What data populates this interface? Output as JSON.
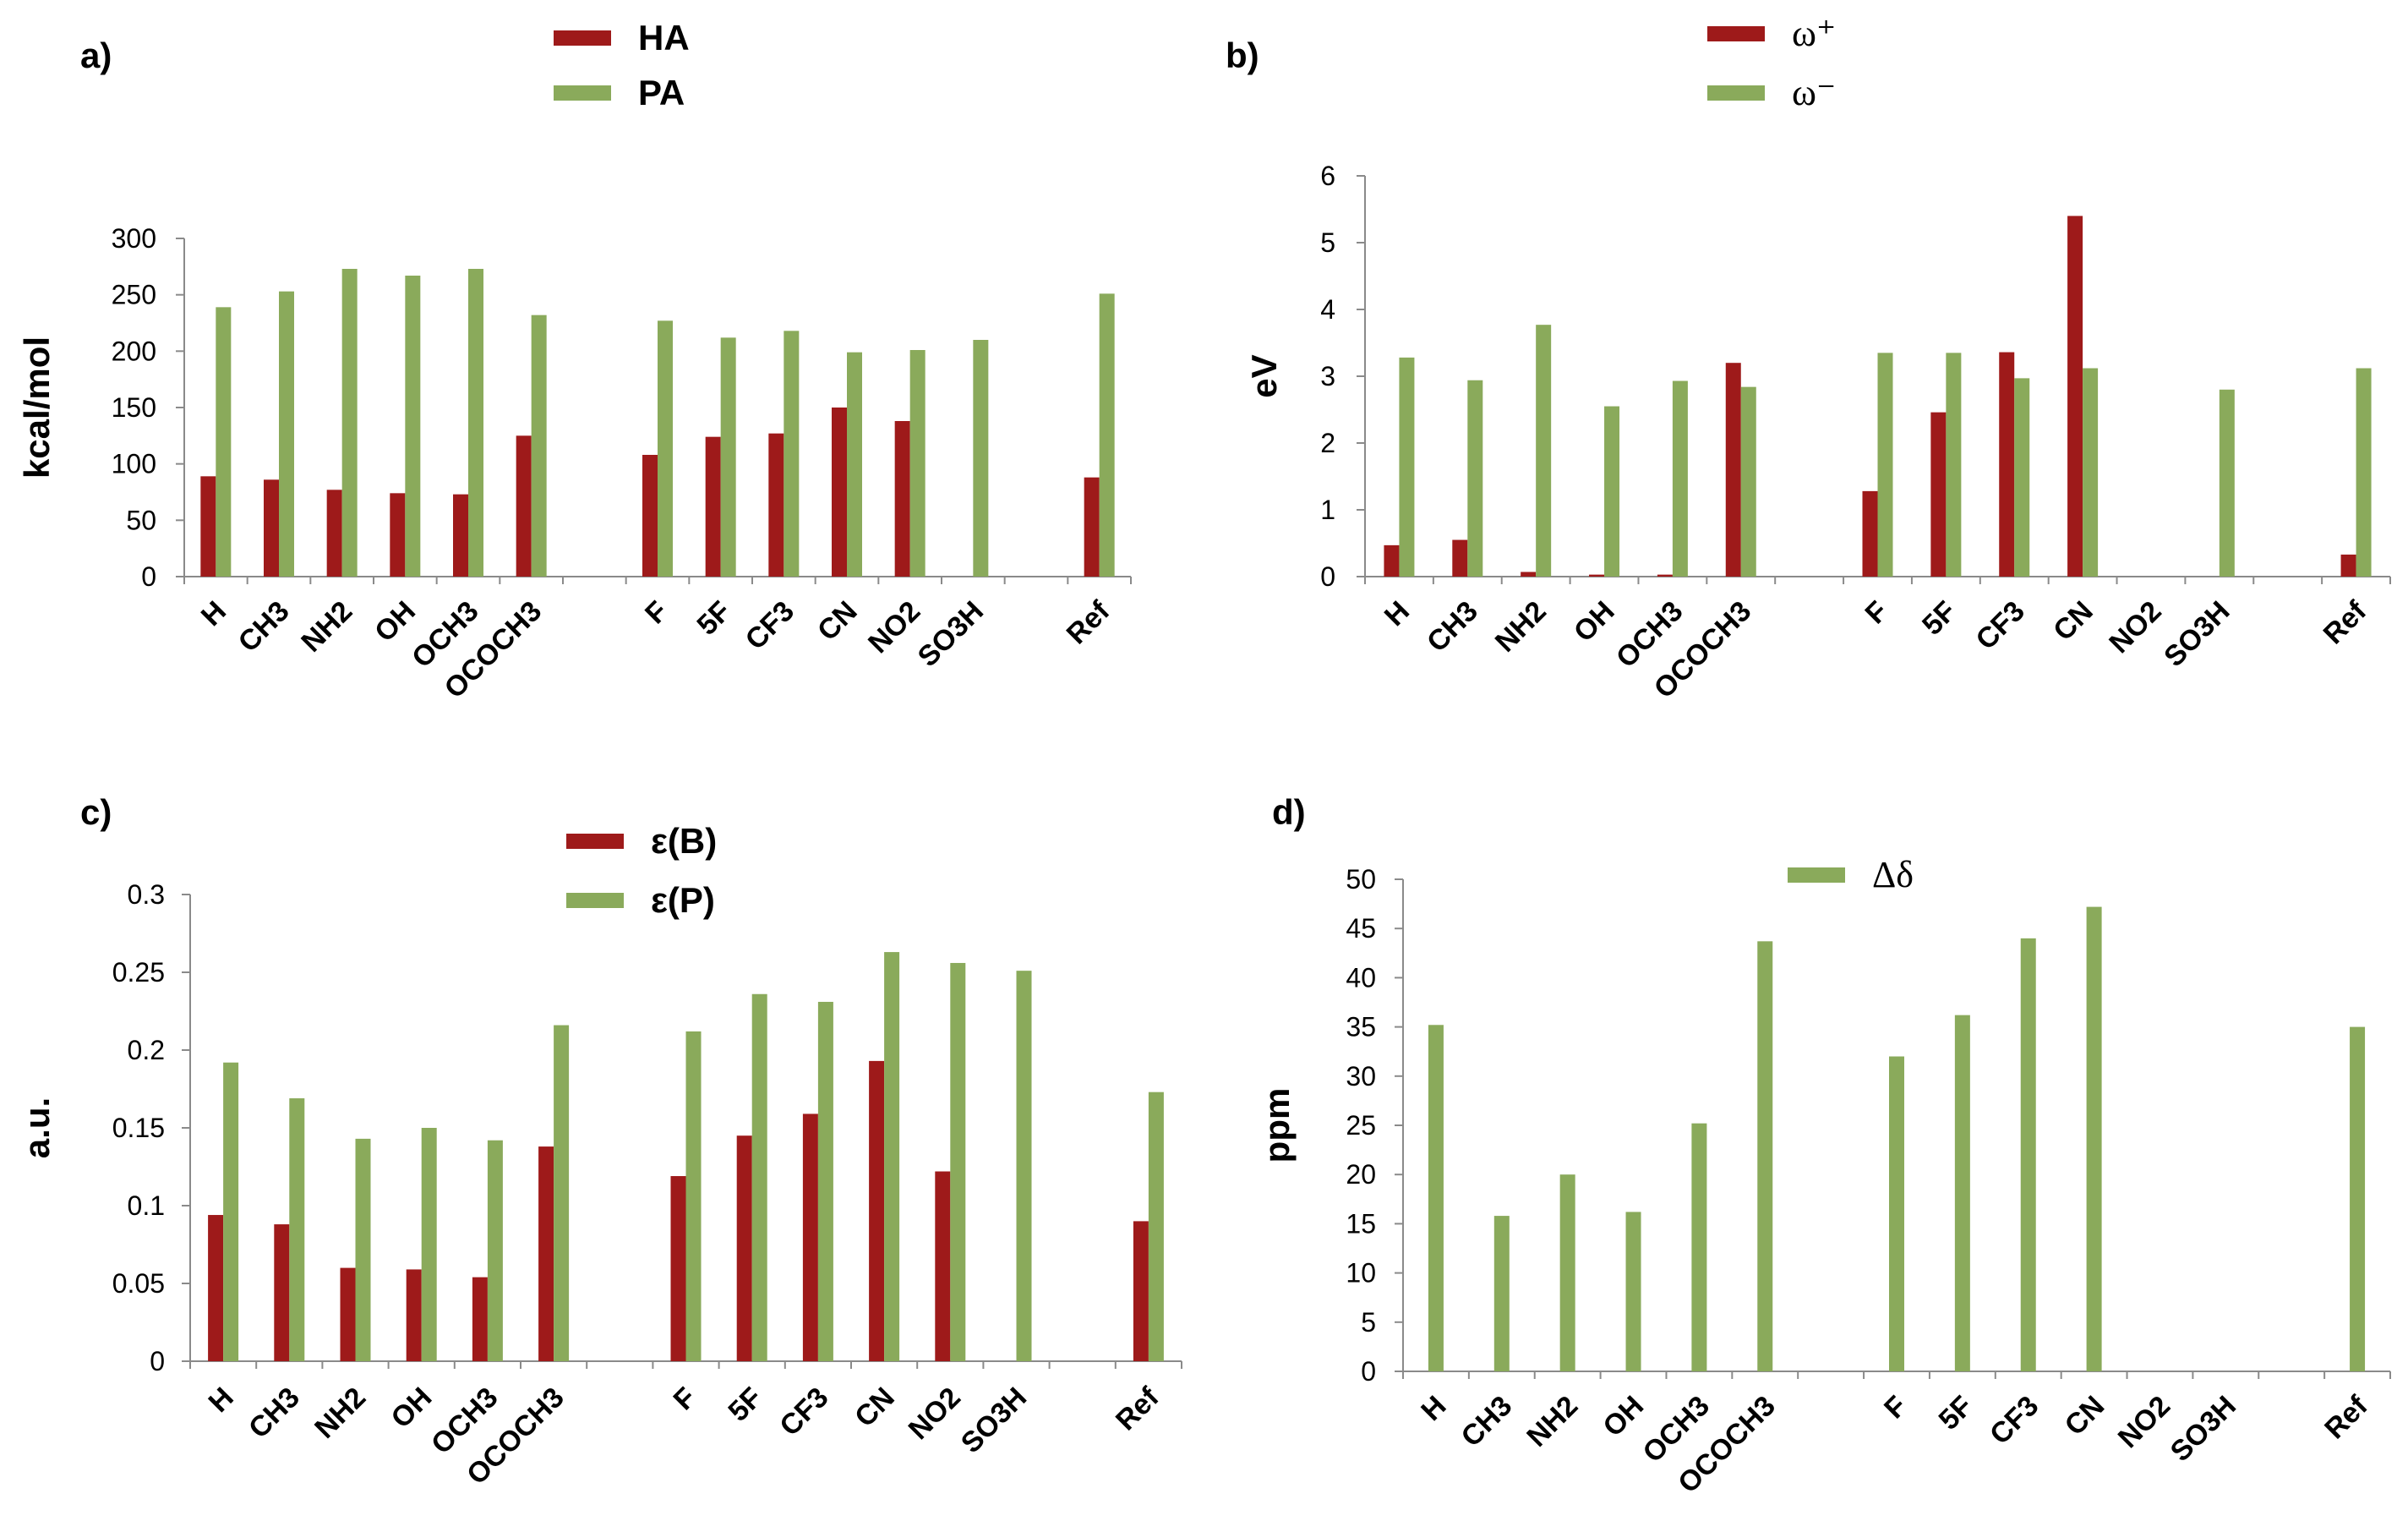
{
  "colors": {
    "red": "#9e1a1a",
    "green": "#8aaa5b",
    "axis": "#8a8a8a"
  },
  "chart_data": [
    {
      "panel": "a)",
      "type": "bar",
      "ylabel": "kcal/mol",
      "ylim": [
        0,
        300
      ],
      "yticks": [
        0,
        50,
        100,
        150,
        200,
        250,
        300
      ],
      "ytick_labels": [
        "0",
        "50",
        "100",
        "150",
        "200",
        "250",
        "300"
      ],
      "categories": [
        "H",
        "CH3",
        "NH2",
        "OH",
        "OCH3",
        "OCOCH3",
        "",
        "F",
        "5F",
        "CF3",
        "CN",
        "NO2",
        "SO3H",
        "",
        "Ref"
      ],
      "legend_symbol": "bar",
      "series": [
        {
          "name": "HA",
          "color_key": "red",
          "values": [
            89,
            86,
            77,
            74,
            73,
            125,
            null,
            108,
            124,
            127,
            150,
            138,
            null,
            null,
            88
          ]
        },
        {
          "name": "PA",
          "color_key": "green",
          "values": [
            239,
            253,
            273,
            267,
            273,
            232,
            null,
            227,
            212,
            218,
            199,
            201,
            210,
            null,
            251
          ]
        }
      ]
    },
    {
      "panel": "b)",
      "type": "bar",
      "ylabel": "eV",
      "ylim": [
        0,
        6
      ],
      "yticks": [
        0,
        1,
        2,
        3,
        4,
        5,
        6
      ],
      "ytick_labels": [
        "0",
        "1",
        "2",
        "3",
        "4",
        "5",
        "6"
      ],
      "categories": [
        "H",
        "CH3",
        "NH2",
        "OH",
        "OCH3",
        "OCOCH3",
        "",
        "F",
        "5F",
        "CF3",
        "CN",
        "NO2",
        "SO3H",
        "",
        "Ref"
      ],
      "legend_symbol": "bar",
      "legend_serif": true,
      "series": [
        {
          "name": "ω⁺",
          "color_key": "red",
          "values": [
            0.47,
            0.55,
            0.07,
            0.03,
            0.03,
            3.2,
            null,
            1.28,
            2.46,
            3.36,
            5.4,
            null,
            null,
            null,
            0.33
          ]
        },
        {
          "name": "ω⁻",
          "color_key": "green",
          "values": [
            3.28,
            2.94,
            3.77,
            2.55,
            2.93,
            2.84,
            null,
            3.35,
            3.35,
            2.97,
            3.12,
            null,
            2.8,
            null,
            3.12
          ]
        }
      ]
    },
    {
      "panel": "c)",
      "type": "bar",
      "ylabel": "a.u.",
      "ylim": [
        0,
        0.3
      ],
      "yticks": [
        0,
        0.05,
        0.1,
        0.15,
        0.2,
        0.25,
        0.3
      ],
      "ytick_labels": [
        "0",
        "0.05",
        "0.1",
        "0.15",
        "0.2",
        "0.25",
        "0.3"
      ],
      "categories": [
        "H",
        "CH3",
        "NH2",
        "OH",
        "OCH3",
        "OCOCH3",
        "",
        "F",
        "5F",
        "CF3",
        "CN",
        "NO2",
        "SO3H",
        "",
        "Ref"
      ],
      "legend_symbol": "bar",
      "series": [
        {
          "name": "ε(B)",
          "color_key": "red",
          "values": [
            0.094,
            0.088,
            0.06,
            0.059,
            0.054,
            0.138,
            null,
            0.119,
            0.145,
            0.159,
            0.193,
            0.122,
            null,
            null,
            0.09
          ]
        },
        {
          "name": "ε(P)",
          "color_key": "green",
          "values": [
            0.192,
            0.169,
            0.143,
            0.15,
            0.142,
            0.216,
            null,
            0.212,
            0.236,
            0.231,
            0.263,
            0.256,
            0.251,
            null,
            0.173
          ]
        }
      ]
    },
    {
      "panel": "d)",
      "type": "bar",
      "ylabel": "ppm",
      "ylim": [
        0,
        50
      ],
      "yticks": [
        0,
        5,
        10,
        15,
        20,
        25,
        30,
        35,
        40,
        45,
        50
      ],
      "ytick_labels": [
        "0",
        "5",
        "10",
        "15",
        "20",
        "25",
        "30",
        "35",
        "40",
        "45",
        "50"
      ],
      "categories": [
        "H",
        "CH3",
        "NH2",
        "OH",
        "OCH3",
        "OCOCH3",
        "",
        "F",
        "5F",
        "CF3",
        "CN",
        "NO2",
        "SO3H",
        "",
        "Ref"
      ],
      "legend_symbol": "bar",
      "legend_serif": true,
      "series": [
        {
          "name": "Δδ",
          "color_key": "green",
          "values": [
            35.2,
            15.8,
            20,
            16.2,
            25.2,
            43.7,
            null,
            32,
            36.2,
            44,
            47.2,
            null,
            null,
            null,
            35
          ]
        }
      ]
    }
  ]
}
